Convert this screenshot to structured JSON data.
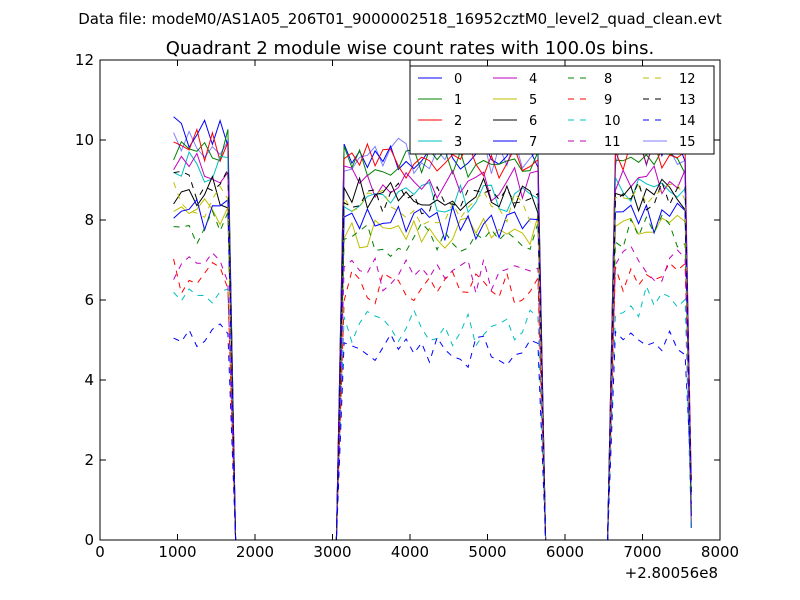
{
  "chart_data": {
    "type": "line",
    "suptitle": "Data file: modeM0/AS1A05_206T01_9000002518_16952cztM0_level2_quad_clean.evt",
    "title": "Quadrant 2 module wise count rates with 100.0s bins.",
    "xlabel": "",
    "ylabel": "",
    "x_offset_label": "+2.80056e8",
    "xlim": [
      0,
      8000
    ],
    "ylim": [
      0,
      12
    ],
    "xticks": [
      "0",
      "1000",
      "2000",
      "3000",
      "4000",
      "5000",
      "6000",
      "7000",
      "8000"
    ],
    "yticks": [
      "0",
      "2",
      "4",
      "6",
      "8",
      "10",
      "12"
    ],
    "legend_position": "top-right",
    "segments": [
      {
        "name": "segment-1",
        "x": [
          950,
          1050,
          1150,
          1250,
          1350,
          1450,
          1550,
          1650
        ]
      },
      {
        "name": "segment-2",
        "x": [
          3150,
          3250,
          3350,
          3450,
          3550,
          3650,
          3750,
          3850,
          3950,
          4050,
          4150,
          4250,
          4350,
          4450,
          4550,
          4650,
          4750,
          4850,
          4950,
          5050,
          5150,
          5250,
          5350,
          5450,
          5550,
          5650
        ]
      },
      {
        "name": "segment-3",
        "x": [
          6650,
          6750,
          6850,
          6950,
          7050,
          7150,
          7250,
          7350,
          7450,
          7550
        ]
      }
    ],
    "series": [
      {
        "name": "0",
        "color": "#0000ff",
        "dash": "solid",
        "levels": [
          10.2,
          9.7,
          9.9
        ]
      },
      {
        "name": "1",
        "color": "#008000",
        "dash": "solid",
        "levels": [
          9.9,
          9.4,
          9.5
        ]
      },
      {
        "name": "2",
        "color": "#ff0000",
        "dash": "solid",
        "levels": [
          9.9,
          9.5,
          9.6
        ]
      },
      {
        "name": "3",
        "color": "#00bfbf",
        "dash": "solid",
        "levels": [
          9.3,
          8.6,
          8.9
        ]
      },
      {
        "name": "4",
        "color": "#bf00bf",
        "dash": "solid",
        "levels": [
          9.3,
          8.9,
          9.1
        ]
      },
      {
        "name": "5",
        "color": "#bfbf00",
        "dash": "solid",
        "levels": [
          8.1,
          7.7,
          8.0
        ]
      },
      {
        "name": "6",
        "color": "#000000",
        "dash": "solid",
        "levels": [
          8.7,
          8.6,
          8.6
        ]
      },
      {
        "name": "7",
        "color": "#0000ff",
        "dash": "solid",
        "levels": [
          8.2,
          7.9,
          8.1
        ]
      },
      {
        "name": "8",
        "color": "#008000",
        "dash": "dashed",
        "levels": [
          7.8,
          7.5,
          7.7
        ]
      },
      {
        "name": "9",
        "color": "#ff0000",
        "dash": "dashed",
        "levels": [
          6.6,
          6.3,
          6.6
        ]
      },
      {
        "name": "10",
        "color": "#00bfbf",
        "dash": "dashed",
        "levels": [
          5.9,
          5.3,
          5.9
        ]
      },
      {
        "name": "11",
        "color": "#bf00bf",
        "dash": "dashed",
        "levels": [
          6.8,
          6.6,
          6.9
        ]
      },
      {
        "name": "12",
        "color": "#bfbf00",
        "dash": "dashed",
        "levels": [
          8.5,
          8.3,
          8.5
        ]
      },
      {
        "name": "13",
        "color": "#000000",
        "dash": "dashed",
        "levels": [
          8.9,
          8.5,
          8.7
        ]
      },
      {
        "name": "14",
        "color": "#0000ff",
        "dash": "dashed",
        "levels": [
          5.1,
          4.7,
          4.9
        ]
      },
      {
        "name": "15",
        "color": "#0000ff",
        "dash": "solid",
        "light": true,
        "levels": [
          9.8,
          9.6,
          9.8
        ]
      }
    ]
  }
}
